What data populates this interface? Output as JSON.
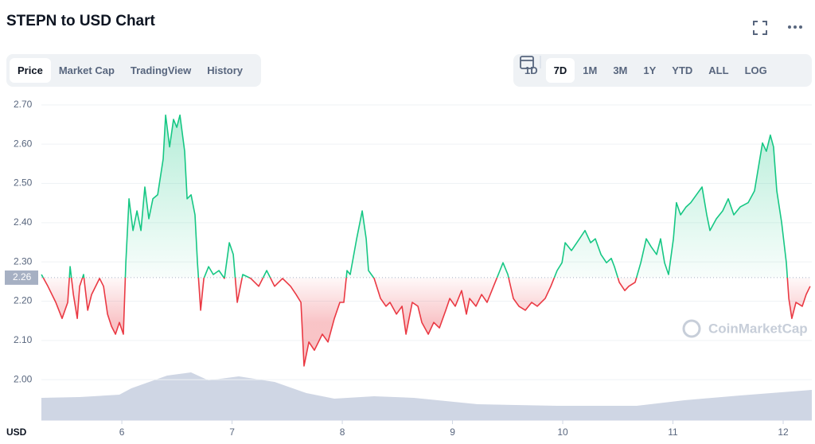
{
  "header": {
    "title": "STEPN to USD Chart"
  },
  "toolbar": {
    "tabs": [
      "Price",
      "Market Cap",
      "TradingView",
      "History"
    ],
    "ranges": [
      "1D",
      "7D",
      "1M",
      "3M",
      "1Y",
      "YTD",
      "ALL"
    ],
    "log": "LOG"
  },
  "chart_data": {
    "type": "line",
    "x": [
      5.271,
      5.329,
      5.401,
      5.458,
      5.509,
      5.531,
      5.56,
      5.596,
      5.617,
      5.653,
      5.69,
      5.726,
      5.798,
      5.834,
      5.87,
      5.906,
      5.942,
      5.978,
      6.014,
      6.036,
      6.065,
      6.101,
      6.137,
      6.173,
      6.209,
      6.245,
      6.282,
      6.325,
      6.375,
      6.397,
      6.433,
      6.469,
      6.498,
      6.527,
      6.57,
      6.592,
      6.628,
      6.664,
      6.686,
      6.715,
      6.744,
      6.787,
      6.83,
      6.881,
      6.931,
      6.975,
      7.011,
      7.047,
      7.097,
      7.17,
      7.242,
      7.314,
      7.386,
      7.458,
      7.531,
      7.581,
      7.625,
      7.653,
      7.697,
      7.747,
      7.819,
      7.87,
      7.928,
      7.978,
      8.014,
      8.043,
      8.072,
      8.13,
      8.181,
      8.217,
      8.238,
      8.289,
      8.347,
      8.397,
      8.433,
      8.491,
      8.542,
      8.578,
      8.635,
      8.686,
      8.722,
      8.78,
      8.83,
      8.881,
      8.939,
      8.975,
      9.025,
      9.083,
      9.126,
      9.155,
      9.213,
      9.264,
      9.314,
      9.372,
      9.43,
      9.458,
      9.502,
      9.552,
      9.603,
      9.661,
      9.718,
      9.769,
      9.841,
      9.892,
      9.949,
      9.993,
      10.022,
      10.079,
      10.152,
      10.202,
      10.253,
      10.296,
      10.347,
      10.397,
      10.44,
      10.469,
      10.513,
      10.563,
      10.599,
      10.657,
      10.708,
      10.758,
      10.801,
      10.852,
      10.888,
      10.924,
      10.96,
      11.004,
      11.032,
      11.069,
      11.119,
      11.162,
      11.213,
      11.264,
      11.307,
      11.336,
      11.394,
      11.451,
      11.502,
      11.552,
      11.61,
      11.682,
      11.74,
      11.776,
      11.812,
      11.848,
      11.884,
      11.913,
      11.942,
      11.986,
      12.029,
      12.051,
      12.079,
      12.116,
      12.173,
      12.209,
      12.245
    ],
    "series": [
      {
        "name": "STEPN",
        "color": "#16c784",
        "values": [
          2.268,
          2.238,
          2.197,
          2.156,
          2.197,
          2.288,
          2.217,
          2.156,
          2.238,
          2.268,
          2.177,
          2.217,
          2.258,
          2.238,
          2.167,
          2.136,
          2.116,
          2.146,
          2.116,
          2.298,
          2.461,
          2.38,
          2.43,
          2.38,
          2.491,
          2.41,
          2.461,
          2.471,
          2.562,
          2.674,
          2.593,
          2.663,
          2.643,
          2.674,
          2.582,
          2.461,
          2.471,
          2.42,
          2.298,
          2.177,
          2.258,
          2.288,
          2.268,
          2.278,
          2.258,
          2.349,
          2.319,
          2.197,
          2.268,
          2.258,
          2.238,
          2.278,
          2.238,
          2.258,
          2.238,
          2.217,
          2.197,
          2.035,
          2.096,
          2.075,
          2.116,
          2.096,
          2.156,
          2.197,
          2.197,
          2.278,
          2.268,
          2.359,
          2.43,
          2.359,
          2.278,
          2.258,
          2.207,
          2.187,
          2.197,
          2.167,
          2.187,
          2.116,
          2.197,
          2.187,
          2.146,
          2.116,
          2.146,
          2.132,
          2.177,
          2.207,
          2.187,
          2.227,
          2.167,
          2.207,
          2.187,
          2.217,
          2.197,
          2.238,
          2.278,
          2.298,
          2.268,
          2.207,
          2.187,
          2.177,
          2.197,
          2.187,
          2.207,
          2.238,
          2.278,
          2.298,
          2.349,
          2.329,
          2.359,
          2.38,
          2.349,
          2.359,
          2.319,
          2.298,
          2.309,
          2.288,
          2.248,
          2.227,
          2.238,
          2.248,
          2.298,
          2.359,
          2.339,
          2.319,
          2.359,
          2.298,
          2.268,
          2.359,
          2.451,
          2.42,
          2.44,
          2.451,
          2.471,
          2.491,
          2.42,
          2.38,
          2.41,
          2.43,
          2.461,
          2.42,
          2.44,
          2.451,
          2.481,
          2.542,
          2.603,
          2.582,
          2.623,
          2.593,
          2.481,
          2.4,
          2.298,
          2.207,
          2.156,
          2.197,
          2.187,
          2.217,
          2.238
        ]
      }
    ],
    "baseline": 2.26,
    "xlim": [
      5.27,
      12.26
    ],
    "ylim": [
      1.897,
      2.724
    ],
    "xticks": [
      6,
      7,
      8,
      9,
      10,
      11,
      12
    ],
    "yticks": [
      {
        "value": 2.0,
        "label": "2.00"
      },
      {
        "value": 2.1,
        "label": "2.10"
      },
      {
        "value": 2.2,
        "label": "2.20"
      },
      {
        "value": 2.3,
        "label": "2.30"
      },
      {
        "value": 2.4,
        "label": "2.40"
      },
      {
        "value": 2.5,
        "label": "2.50"
      },
      {
        "value": 2.6,
        "label": "2.60"
      },
      {
        "value": 2.7,
        "label": "2.70"
      }
    ],
    "below_color": "#ea3943",
    "currency": "USD",
    "watermark": "CoinMarketCap",
    "grid": true
  }
}
